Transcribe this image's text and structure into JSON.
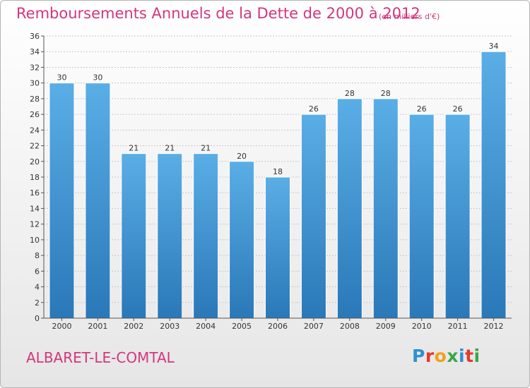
{
  "chart_data": {
    "type": "bar",
    "title": "Remboursements Annuels de la Dette de 2000 à 2012",
    "subtitle": "(en milliers d'€)",
    "categories": [
      "2000",
      "2001",
      "2002",
      "2003",
      "2004",
      "2005",
      "2006",
      "2007",
      "2008",
      "2009",
      "2010",
      "2011",
      "2012"
    ],
    "values": [
      30,
      30,
      21,
      21,
      21,
      20,
      18,
      26,
      28,
      28,
      26,
      26,
      34
    ],
    "xlabel": "",
    "ylabel": "",
    "ylim": [
      0,
      36
    ],
    "ytick_step": 2,
    "grid": true,
    "colors": {
      "bar_top": "#5aaee6",
      "bar_bottom": "#2a78b8",
      "title": "#d2377d",
      "grid": "#c8c8c8"
    }
  },
  "footer": {
    "commune": "ALBARET-LE-COMTAL",
    "brand_letters": [
      {
        "ch": "P",
        "color": "#2f8fd2"
      },
      {
        "ch": "r",
        "color": "#e8382a"
      },
      {
        "ch": "o",
        "color": "#f2a01d"
      },
      {
        "ch": "x",
        "color": "#3aa648"
      },
      {
        "ch": "i",
        "color": "#2f8fd2"
      },
      {
        "ch": "t",
        "color": "#e8382a"
      },
      {
        "ch": "i",
        "color": "#3aa648"
      }
    ]
  }
}
